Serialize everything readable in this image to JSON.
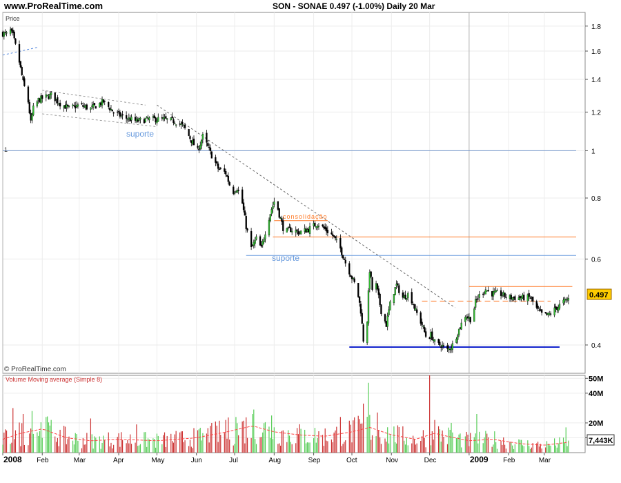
{
  "header": {
    "site": "www.ProRealTime.com",
    "title": "SON - SONAE    0.497 (-1.00%)    Daily  20 Mar"
  },
  "price_panel": {
    "label": "Price",
    "left_label": "1",
    "copyright": "© ProRealTime.com",
    "last_price": "0.497",
    "annotations": {
      "suporte_1": "suporte",
      "suporte_2": "suporte",
      "consolidacao": "consolidação"
    }
  },
  "volume_panel": {
    "label": "Volume Moving average (Simple 8)",
    "last_volume": "7,443K"
  },
  "colors": {
    "up": "#33bb33",
    "down": "#000000",
    "resistance": "#ff7722",
    "support_blue": "#6699dd",
    "bottom_line": "#1122cc",
    "vol_up": "#55cc55",
    "vol_down": "#cc3333",
    "vol_ma": "#ff4444",
    "last_price_bg": "#ffcc00"
  },
  "chart_data": [
    {
      "type": "candlestick",
      "name": "price",
      "scale": "log",
      "ylim": [
        0.35,
        1.92
      ],
      "yticks": [
        0.4,
        0.6,
        0.8,
        1,
        1.2,
        1.4,
        1.6,
        1.8
      ],
      "ytick_labels": [
        "0.4",
        "0.6",
        "0.8",
        "1",
        "1.2",
        "1.4",
        "1.6",
        "1.8"
      ],
      "xlim": [
        "2008-01-01",
        "2009-03-26"
      ],
      "x_ticks": [
        {
          "date": "2008-01-01",
          "label": "2008",
          "year": true
        },
        {
          "date": "2008-02-01",
          "label": "Feb"
        },
        {
          "date": "2008-03-01",
          "label": "Mar"
        },
        {
          "date": "2008-04-01",
          "label": "Apr"
        },
        {
          "date": "2008-05-01",
          "label": "May"
        },
        {
          "date": "2008-06-01",
          "label": "Jun"
        },
        {
          "date": "2008-07-01",
          "label": "Jul"
        },
        {
          "date": "2008-08-01",
          "label": "Aug"
        },
        {
          "date": "2008-09-01",
          "label": "Sep"
        },
        {
          "date": "2008-10-01",
          "label": "Oct"
        },
        {
          "date": "2008-11-01",
          "label": "Nov"
        },
        {
          "date": "2008-12-01",
          "label": "Dec"
        },
        {
          "date": "2009-01-01",
          "label": "2009",
          "year": true
        },
        {
          "date": "2009-02-01",
          "label": "Feb"
        },
        {
          "date": "2009-03-01",
          "label": "Mar"
        }
      ],
      "close_path": [
        [
          "2008-01-01",
          1.74
        ],
        [
          "2008-01-04",
          1.73
        ],
        [
          "2008-01-07",
          1.76
        ],
        [
          "2008-01-09",
          1.72
        ],
        [
          "2008-01-14",
          1.52
        ],
        [
          "2008-01-17",
          1.38
        ],
        [
          "2008-01-21",
          1.26
        ],
        [
          "2008-01-23",
          1.14
        ],
        [
          "2008-01-25",
          1.22
        ],
        [
          "2008-01-29",
          1.27
        ],
        [
          "2008-02-01",
          1.28
        ],
        [
          "2008-02-08",
          1.3
        ],
        [
          "2008-02-15",
          1.25
        ],
        [
          "2008-02-22",
          1.22
        ],
        [
          "2008-03-01",
          1.24
        ],
        [
          "2008-03-10",
          1.22
        ],
        [
          "2008-03-20",
          1.26
        ],
        [
          "2008-03-28",
          1.2
        ],
        [
          "2008-04-05",
          1.17
        ],
        [
          "2008-04-15",
          1.15
        ],
        [
          "2008-04-25",
          1.16
        ],
        [
          "2008-05-05",
          1.16
        ],
        [
          "2008-05-15",
          1.15
        ],
        [
          "2008-05-22",
          1.12
        ],
        [
          "2008-05-28",
          1.05
        ],
        [
          "2008-06-02",
          1.0
        ],
        [
          "2008-06-06",
          1.07
        ],
        [
          "2008-06-12",
          0.99
        ],
        [
          "2008-06-18",
          0.92
        ],
        [
          "2008-06-24",
          0.9
        ],
        [
          "2008-06-29",
          0.82
        ],
        [
          "2008-07-03",
          0.84
        ],
        [
          "2008-07-07",
          0.78
        ],
        [
          "2008-07-10",
          0.7
        ],
        [
          "2008-07-14",
          0.63
        ],
        [
          "2008-07-18",
          0.66
        ],
        [
          "2008-07-22",
          0.63
        ],
        [
          "2008-07-26",
          0.7
        ],
        [
          "2008-07-30",
          0.76
        ],
        [
          "2008-08-02",
          0.8
        ],
        [
          "2008-08-05",
          0.74
        ],
        [
          "2008-08-09",
          0.68
        ],
        [
          "2008-08-14",
          0.69
        ],
        [
          "2008-08-21",
          0.68
        ],
        [
          "2008-08-28",
          0.69
        ],
        [
          "2008-09-04",
          0.71
        ],
        [
          "2008-09-10",
          0.69
        ],
        [
          "2008-09-16",
          0.67
        ],
        [
          "2008-09-22",
          0.63
        ],
        [
          "2008-09-26",
          0.59
        ],
        [
          "2008-10-01",
          0.55
        ],
        [
          "2008-10-05",
          0.52
        ],
        [
          "2008-10-08",
          0.47
        ],
        [
          "2008-10-10",
          0.41
        ],
        [
          "2008-10-13",
          0.45
        ],
        [
          "2008-10-15",
          0.57
        ],
        [
          "2008-10-17",
          0.52
        ],
        [
          "2008-10-20",
          0.53
        ],
        [
          "2008-10-24",
          0.47
        ],
        [
          "2008-10-28",
          0.44
        ],
        [
          "2008-11-01",
          0.5
        ],
        [
          "2008-11-05",
          0.53
        ],
        [
          "2008-11-10",
          0.5
        ],
        [
          "2008-11-15",
          0.51
        ],
        [
          "2008-11-20",
          0.47
        ],
        [
          "2008-11-25",
          0.44
        ],
        [
          "2008-11-29",
          0.41
        ],
        [
          "2008-12-02",
          0.42
        ],
        [
          "2008-12-06",
          0.4
        ],
        [
          "2008-12-10",
          0.4
        ],
        [
          "2008-12-15",
          0.39
        ],
        [
          "2008-12-19",
          0.4
        ],
        [
          "2008-12-24",
          0.43
        ],
        [
          "2008-12-29",
          0.46
        ],
        [
          "2009-01-03",
          0.45
        ],
        [
          "2009-01-06",
          0.49
        ],
        [
          "2009-01-10",
          0.51
        ],
        [
          "2009-01-14",
          0.52
        ],
        [
          "2009-01-18",
          0.51
        ],
        [
          "2009-01-25",
          0.51
        ],
        [
          "2009-02-01",
          0.5
        ],
        [
          "2009-02-10",
          0.5
        ],
        [
          "2009-02-18",
          0.5
        ],
        [
          "2009-02-24",
          0.47
        ],
        [
          "2009-02-28",
          0.46
        ],
        [
          "2009-03-04",
          0.46
        ],
        [
          "2009-03-08",
          0.47
        ],
        [
          "2009-03-12",
          0.48
        ],
        [
          "2009-03-16",
          0.49
        ],
        [
          "2009-03-20",
          0.497
        ]
      ],
      "horizontal_lines": [
        {
          "value": 1.0,
          "color": "#7799cc",
          "from": "2008-01-01",
          "to": "2009-03-26"
        },
        {
          "value": 0.666,
          "color": "#ff7722",
          "from": "2008-07-31",
          "to": "2009-03-26"
        },
        {
          "value": 0.61,
          "color": "#6699dd",
          "from": "2008-07-10",
          "to": "2009-03-26"
        },
        {
          "value": 0.719,
          "color": "#ff7722",
          "from": "2008-08-01",
          "to": "2008-09-12"
        },
        {
          "value": 0.527,
          "color": "#ff7722",
          "from": "2009-01-01",
          "to": "2009-03-23"
        },
        {
          "value": 0.492,
          "color": "#ff7722",
          "from": "2008-11-25",
          "to": "2009-03-06",
          "dashed": true
        },
        {
          "value": 0.396,
          "color": "#1122cc",
          "from": "2008-09-29",
          "to": "2009-03-13",
          "width": 2
        }
      ],
      "trend_lines": [
        {
          "from": [
            "2008-05-01",
            1.24
          ],
          "to": [
            "2008-12-21",
            0.477
          ],
          "color": "#666666"
        },
        {
          "from": [
            "2008-01-01",
            1.57
          ],
          "to": [
            "2008-01-29",
            1.63
          ],
          "color": "#5588dd"
        },
        {
          "from": [
            "2008-02-01",
            1.33
          ],
          "to": [
            "2008-04-22",
            1.24
          ],
          "color": "#999999"
        },
        {
          "from": [
            "2008-02-01",
            1.19
          ],
          "to": [
            "2008-05-01",
            1.12
          ],
          "color": "#999999"
        }
      ]
    },
    {
      "type": "bar",
      "name": "volume",
      "ylim": [
        0,
        52
      ],
      "yticks": [
        10,
        20,
        40,
        50
      ],
      "ytick_labels": [
        "",
        "20M",
        "40M",
        "50M"
      ],
      "ma_path": [
        [
          "2008-01-01",
          9
        ],
        [
          "2008-01-15",
          13
        ],
        [
          "2008-02-01",
          16
        ],
        [
          "2008-02-20",
          10
        ],
        [
          "2008-03-10",
          8
        ],
        [
          "2008-04-01",
          9
        ],
        [
          "2008-05-01",
          8
        ],
        [
          "2008-06-01",
          10
        ],
        [
          "2008-06-25",
          14
        ],
        [
          "2008-07-15",
          18
        ],
        [
          "2008-08-01",
          14
        ],
        [
          "2008-08-20",
          12
        ],
        [
          "2008-09-10",
          11
        ],
        [
          "2008-10-01",
          14
        ],
        [
          "2008-10-15",
          17
        ],
        [
          "2008-11-01",
          12
        ],
        [
          "2008-11-20",
          9
        ],
        [
          "2008-12-05",
          13
        ],
        [
          "2008-12-15",
          11
        ],
        [
          "2009-01-01",
          8
        ],
        [
          "2009-01-20",
          9
        ],
        [
          "2009-02-10",
          6
        ],
        [
          "2009-03-01",
          5
        ],
        [
          "2009-03-20",
          7
        ]
      ],
      "spikes": [
        [
          "2008-01-09",
          30
        ],
        [
          "2008-01-17",
          26
        ],
        [
          "2008-01-24",
          28
        ],
        [
          "2008-02-04",
          24
        ],
        [
          "2008-03-10",
          23
        ],
        [
          "2008-04-15",
          19
        ],
        [
          "2008-06-12",
          18
        ],
        [
          "2008-06-24",
          22
        ],
        [
          "2008-07-02",
          24
        ],
        [
          "2008-07-16",
          29
        ],
        [
          "2008-07-30",
          25
        ],
        [
          "2008-09-22",
          24
        ],
        [
          "2008-10-10",
          33
        ],
        [
          "2008-10-14",
          47
        ],
        [
          "2008-10-21",
          27
        ],
        [
          "2008-12-01",
          52
        ],
        [
          "2008-12-05",
          22
        ],
        [
          "2008-12-18",
          20
        ],
        [
          "2009-01-07",
          26
        ],
        [
          "2009-03-18",
          17
        ]
      ]
    }
  ]
}
